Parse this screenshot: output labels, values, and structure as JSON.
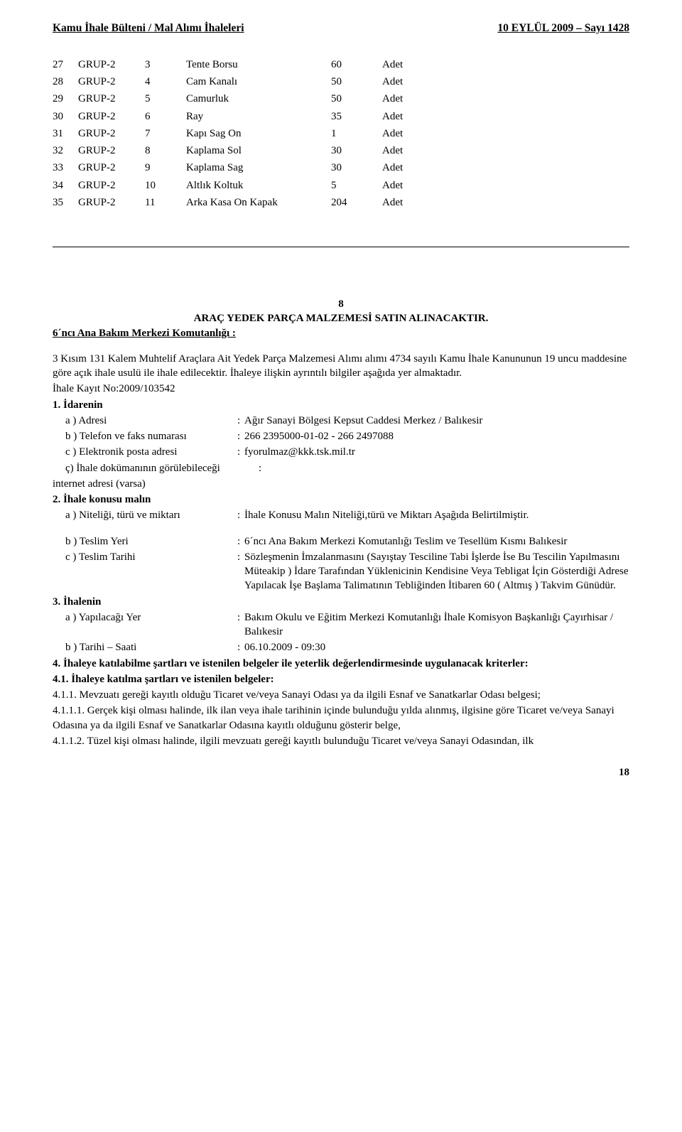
{
  "header": {
    "left": "Kamu İhale Bülteni / Mal Alımı İhaleleri",
    "right": "10 EYLÜL 2009 – Sayı 1428"
  },
  "table_rows": [
    {
      "idx": "27",
      "grp": "GRUP-2",
      "num": "3",
      "name": "Tente Borsu",
      "qty": "60",
      "unit": "Adet"
    },
    {
      "idx": "28",
      "grp": "GRUP-2",
      "num": "4",
      "name": "Cam Kanalı",
      "qty": "50",
      "unit": "Adet"
    },
    {
      "idx": "29",
      "grp": "GRUP-2",
      "num": "5",
      "name": "Camurluk",
      "qty": "50",
      "unit": "Adet"
    },
    {
      "idx": "30",
      "grp": "GRUP-2",
      "num": "6",
      "name": "Ray",
      "qty": "35",
      "unit": "Adet"
    },
    {
      "idx": "31",
      "grp": "GRUP-2",
      "num": "7",
      "name": "Kapı Sag On",
      "qty": "1",
      "unit": "Adet"
    },
    {
      "idx": "32",
      "grp": "GRUP-2",
      "num": "8",
      "name": "Kaplama Sol",
      "qty": "30",
      "unit": "Adet"
    },
    {
      "idx": "33",
      "grp": "GRUP-2",
      "num": "9",
      "name": "Kaplama Sag",
      "qty": "30",
      "unit": "Adet"
    },
    {
      "idx": "34",
      "grp": "GRUP-2",
      "num": "10",
      "name": "Altlık Koltuk",
      "qty": "5",
      "unit": "Adet"
    },
    {
      "idx": "35",
      "grp": "GRUP-2",
      "num": "11",
      "name": "Arka Kasa On Kapak",
      "qty": "204",
      "unit": "Adet"
    }
  ],
  "notice": {
    "number": "8",
    "title": "ARAÇ YEDEK PARÇA MALZEMESİ SATIN ALINACAKTIR.",
    "subunit": "6´ncı Ana Bakım Merkezi Komutanlığı :",
    "intro": "3 Kısım 131 Kalem Muhtelif Araçlara Ait Yedek Parça Malzemesi Alımı alımı 4734 sayılı Kamu İhale Kanununun 19 uncu maddesine göre açık ihale usulü ile ihale edilecektir. İhaleye ilişkin ayrıntılı bilgiler aşağıda yer almaktadır.",
    "kayit": "İhale Kayıt No:2009/103542",
    "s1": {
      "label": "1. İdarenin",
      "a_key": "a ) Adresi",
      "a_val": "Ağır Sanayi Bölgesi Kepsut Caddesi Merkez / Balıkesir",
      "b_key": "b ) Telefon ve faks numarası",
      "b_val": "266 2395000-01-02 - 266 2497088",
      "c_key": "c ) Elektronik posta adresi",
      "c_val": "fyorulmaz@kkk.tsk.mil.tr",
      "d_key_l1": "ç) İhale dokümanının görülebileceği",
      "d_key_l2": "internet adresi (varsa)",
      "d_colon": ":"
    },
    "s2": {
      "label": "2. İhale konusu malın",
      "a_key": "a ) Niteliği, türü ve miktarı",
      "a_val": "İhale Konusu Malın Niteliği,türü ve Miktarı Aşağıda Belirtilmiştir.",
      "b_key": "b ) Teslim Yeri",
      "b_val": "6´ncı Ana Bakım Merkezi Komutanlığı Teslim ve Tesellüm Kısmı Balıkesir",
      "c_key": "c ) Teslim Tarihi",
      "c_val": "Sözleşmenin İmzalanmasını (Sayıştay Tesciline Tabi İşlerde İse Bu Tescilin Yapılmasını Müteakip ) İdare Tarafından Yüklenicinin Kendisine Veya Tebligat İçin Gösterdiği Adrese Yapılacak İşe Başlama Talimatının Tebliğinden İtibaren 60 ( Altmış ) Takvim Günüdür."
    },
    "s3": {
      "label": "3. İhalenin",
      "a_key": "a ) Yapılacağı Yer",
      "a_val": "Bakım Okulu ve Eğitim Merkezi Komutanlığı İhale Komisyon Başkanlığı Çayırhisar / Balıkesir",
      "b_key": "b ) Tarihi – Saati",
      "b_val": "06.10.2009 - 09:30"
    },
    "s4": {
      "label4": "4. İhaleye katılabilme şartları ve istenilen belgeler ile yeterlik değerlendirmesinde uygulanacak kriterler:",
      "label41": "4.1. İhaleye katılma şartları ve istenilen belgeler:",
      "p411": " 4.1.1. Mevzuatı gereği kayıtlı olduğu Ticaret ve/veya Sanayi Odası ya da ilgili Esnaf ve Sanatkarlar Odası belgesi;",
      "p4111": " 4.1.1.1. Gerçek kişi olması halinde, ilk ilan veya ihale tarihinin içinde bulunduğu yılda alınmış, ilgisine göre Ticaret ve/veya Sanayi Odasına ya da ilgili Esnaf ve Sanatkarlar Odasına kayıtlı olduğunu gösterir belge,",
      "p4112": " 4.1.1.2. Tüzel kişi olması halinde, ilgili mevzuatı gereği kayıtlı bulunduğu Ticaret ve/veya Sanayi Odasından, ilk"
    }
  },
  "page_number": "18"
}
